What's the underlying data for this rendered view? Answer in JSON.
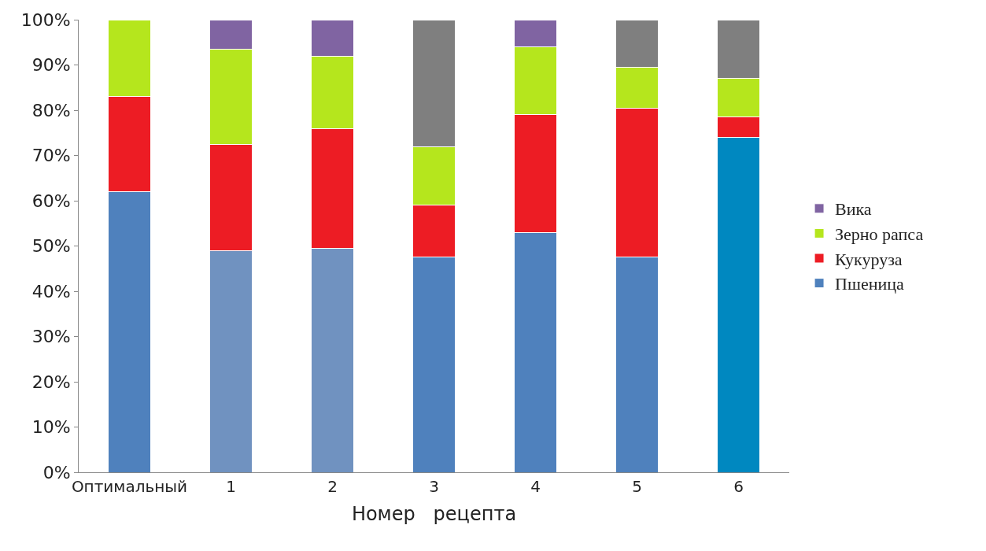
{
  "chart_data": {
    "type": "bar",
    "stacked": true,
    "xlabel": "Номер   рецепта",
    "categories": [
      "Оптимальный",
      "1",
      "2",
      "3",
      "4",
      "5",
      "6"
    ],
    "series": [
      {
        "name": "Пшеница",
        "colors": [
          "#4f81bd",
          "#7092c0",
          "#7092c0",
          "#4f81bd",
          "#4f81bd",
          "#4f81bd",
          "#0088c0"
        ],
        "values": [
          62,
          49,
          49.5,
          47.5,
          53,
          47.5,
          74
        ]
      },
      {
        "name": "Кукуруза",
        "color": "#ed1c24",
        "values": [
          21,
          23.5,
          26.5,
          11.5,
          26,
          33,
          4.5
        ]
      },
      {
        "name": "Зерно рапса",
        "color": "#b5e61d",
        "values": [
          17,
          21,
          16,
          13,
          15,
          9,
          8.5
        ]
      },
      {
        "name": "Вика",
        "color": "#8064a2",
        "values": [
          null,
          6.5,
          8,
          null,
          6,
          null,
          null
        ]
      },
      {
        "color": "#7f7f7f",
        "values": [
          null,
          null,
          null,
          28,
          null,
          10.5,
          13
        ]
      }
    ],
    "ylim": [
      0,
      100
    ],
    "yticks": [
      {
        "value": 0,
        "label": "0%"
      },
      {
        "value": 10,
        "label": "10%"
      },
      {
        "value": 20,
        "label": "20%"
      },
      {
        "value": 30,
        "label": "30%"
      },
      {
        "value": 40,
        "label": "40%"
      },
      {
        "value": 50,
        "label": "50%"
      },
      {
        "value": 60,
        "label": "60%"
      },
      {
        "value": 70,
        "label": "70%"
      },
      {
        "value": 80,
        "label": "80%"
      },
      {
        "value": 90,
        "label": "90%"
      },
      {
        "value": 100,
        "label": "100%"
      }
    ],
    "legend": "right"
  }
}
